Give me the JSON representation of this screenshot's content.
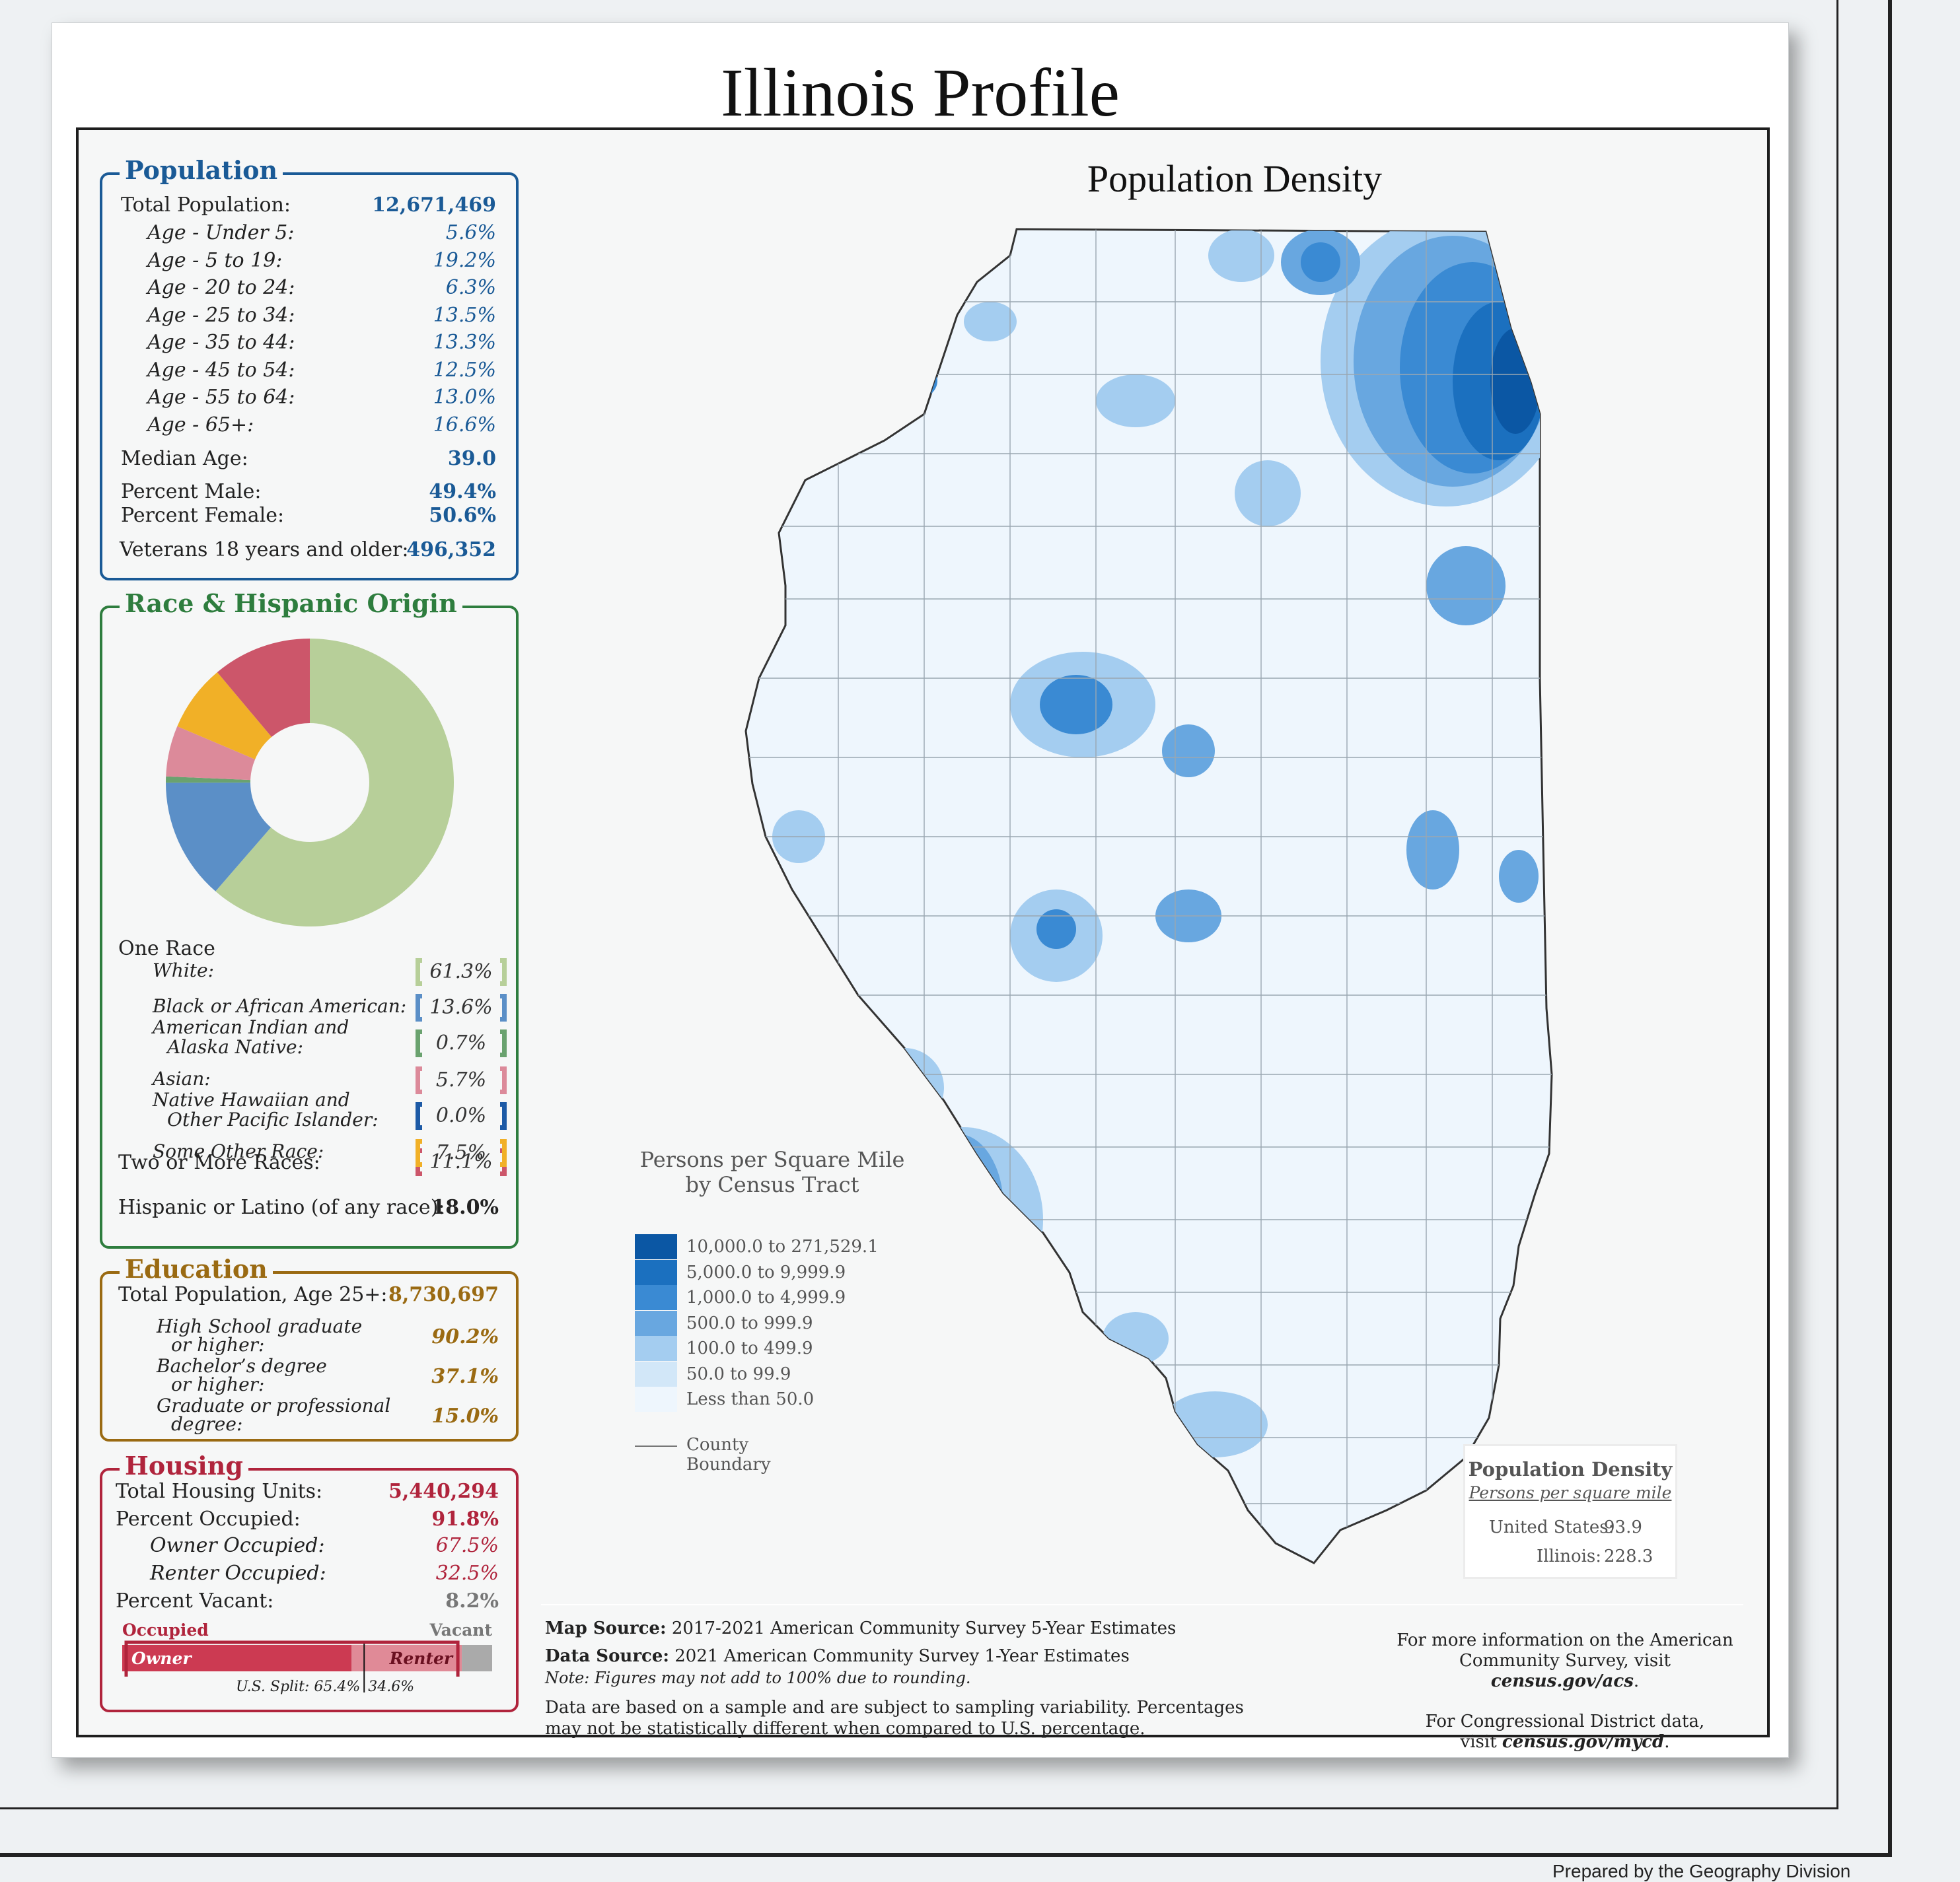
{
  "page": {
    "title": "Illinois Profile",
    "credit": "Prepared by the Geography Division"
  },
  "population": {
    "title": "Population",
    "total_label": "Total Population:",
    "total_value": "12,671,469",
    "ages": [
      {
        "label": "Age - Under 5:",
        "value": "5.6%"
      },
      {
        "label": "Age - 5 to 19:",
        "value": "19.2%"
      },
      {
        "label": "Age - 20 to 24:",
        "value": "6.3%"
      },
      {
        "label": "Age - 25 to 34:",
        "value": "13.5%"
      },
      {
        "label": "Age - 35 to 44:",
        "value": "13.3%"
      },
      {
        "label": "Age - 45 to 54:",
        "value": "12.5%"
      },
      {
        "label": "Age - 55 to 64:",
        "value": "13.0%"
      },
      {
        "label": "Age - 65+:",
        "value": "16.6%"
      }
    ],
    "median_label": "Median Age:",
    "median_value": "39.0",
    "male_label": "Percent Male:",
    "male_value": "49.4%",
    "female_label": "Percent Female:",
    "female_value": "50.6%",
    "veterans_label": "Veterans 18 years and older:",
    "veterans_value": "496,352"
  },
  "race": {
    "title": "Race & Hispanic Origin",
    "one_race_label": "One Race",
    "items": [
      {
        "label": "White:",
        "value": "61.3%",
        "color": "#b7cf99"
      },
      {
        "label": "Black or African American:",
        "value": "13.6%",
        "color": "#5b8fc7"
      },
      {
        "label": "American Indian and",
        "label2": "Alaska Native:",
        "value": "0.7%",
        "color": "#6aa26f"
      },
      {
        "label": "Asian:",
        "value": "5.7%",
        "color": "#dc8a9a"
      },
      {
        "label": "Native Hawaiian and",
        "label2": "Other Pacific Islander:",
        "value": "0.0%",
        "color": "#1d5aa6"
      },
      {
        "label": "Some Other Race:",
        "value": "7.5%",
        "color": "#f1b027"
      }
    ],
    "two_label": "Two or More Races:",
    "two_value": "11.1%",
    "two_color": "#cc566a",
    "hispanic_label": "Hispanic or Latino (of any race):",
    "hispanic_value": "18.0%",
    "donut": [
      {
        "name": "White",
        "value": 61.3,
        "color": "#b7cf99"
      },
      {
        "name": "Black or African American",
        "value": 13.6,
        "color": "#5b8fc7"
      },
      {
        "name": "American Indian and Alaska Native",
        "value": 0.7,
        "color": "#6aa26f"
      },
      {
        "name": "Asian",
        "value": 5.7,
        "color": "#dc8a9a"
      },
      {
        "name": "Native Hawaiian and Other Pacific Islander",
        "value": 0.0,
        "color": "#1d5aa6"
      },
      {
        "name": "Some Other Race",
        "value": 7.5,
        "color": "#f1b027"
      },
      {
        "name": "Two or More Races",
        "value": 11.1,
        "color": "#cc566a"
      }
    ]
  },
  "education": {
    "title": "Education",
    "total_label": "Total Population, Age 25+:",
    "total_value": "8,730,697",
    "items": [
      {
        "label": "High School  graduate",
        "label2": "or higher:",
        "value": "90.2%"
      },
      {
        "label": "Bachelor’s degree",
        "label2": "or higher:",
        "value": "37.1%"
      },
      {
        "label": "Graduate or professional",
        "label2": "degree:",
        "value": "15.0%"
      }
    ]
  },
  "housing": {
    "title": "Housing",
    "total_label": "Total Housing Units:",
    "total_value": "5,440,294",
    "occupied_label": "Percent Occupied:",
    "occupied_value": "91.8%",
    "owner_label": "Owner Occupied:",
    "owner_value": "67.5%",
    "renter_label": "Renter Occupied:",
    "renter_value": "32.5%",
    "vacant_label": "Percent Vacant:",
    "vacant_value": "8.2%",
    "bar": {
      "occupied_label": "Occupied",
      "vacant_label": "Vacant",
      "owner_label": "Owner",
      "renter_label": "Renter",
      "occupied_share": 91.8,
      "owner_share_of_occupied": 67.5,
      "us_owner_share": 65.4,
      "us_split_label": "U.S. Split: 65.4%",
      "us_split_label2": "34.6%"
    }
  },
  "map": {
    "title": "Population Density",
    "legend_title1": "Persons per Square Mile",
    "legend_title2": "by Census Tract",
    "legend": [
      {
        "label": "10,000.0 to 271,529.1",
        "color": "#0b57a4"
      },
      {
        "label": "5,000.0 to 9,999.9",
        "color": "#1b70bf"
      },
      {
        "label": "1,000.0 to 4,999.9",
        "color": "#3a8ad3"
      },
      {
        "label": "500.0 to 999.9",
        "color": "#68a7e0"
      },
      {
        "label": "100.0 to 499.9",
        "color": "#a4cdf0"
      },
      {
        "label": "50.0 to 99.9",
        "color": "#d2e7f8"
      },
      {
        "label": "Less than 50.0",
        "color": "#eef6fd"
      }
    ],
    "county_label": "County Boundary",
    "inset_title": "Population Density",
    "inset_subtitle": "Persons per square mile",
    "us_label": "United States:",
    "us_value": "93.9",
    "il_label": "Illinois:",
    "il_value": "228.3"
  },
  "footer": {
    "map_source_label": "Map Source:",
    "map_source": "2017-2021 American Community Survey 5-Year Estimates",
    "data_source_label": "Data Source:",
    "data_source": "2021 American Community Survey 1-Year Estimates",
    "note": "Note: Figures may not add to 100% due to rounding.",
    "disclaimer1": "Data are based on a sample and are subject to sampling variability. Percentages",
    "disclaimer2": "may not be statistically different when compared to U.S. percentage.",
    "info1": "For more information on the American",
    "info2": "Community Survey, visit",
    "info_link": "census.gov/acs",
    "info3": "For Congressional District data,",
    "info4": "visit",
    "info_link2": "census.gov/mycd"
  }
}
